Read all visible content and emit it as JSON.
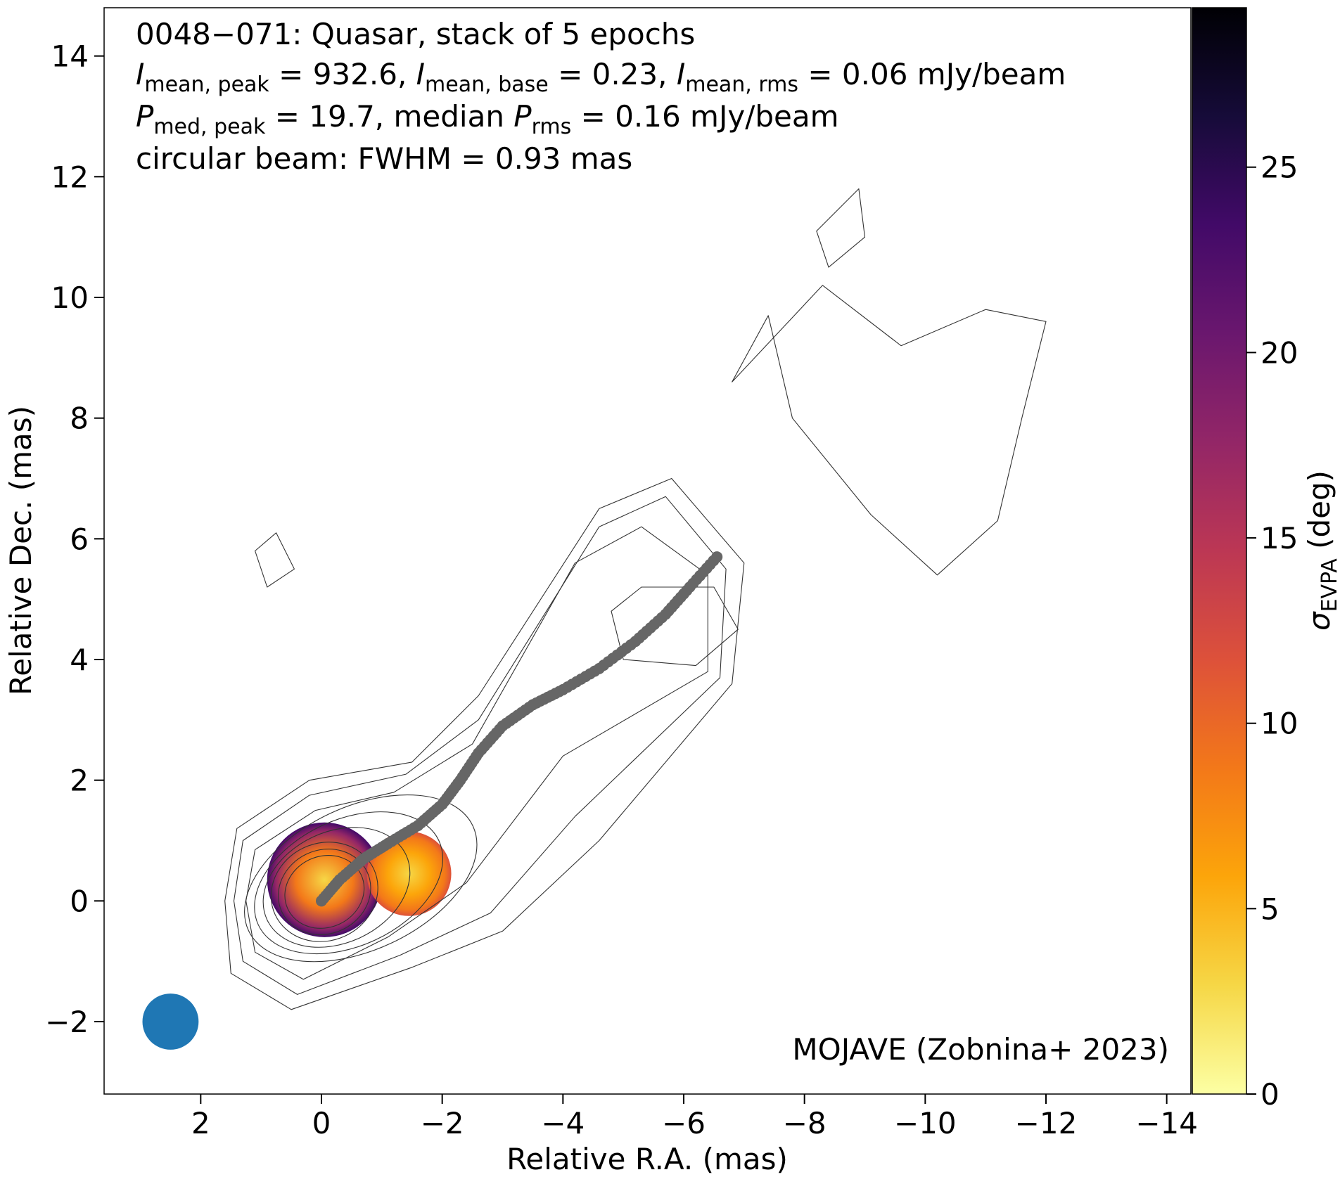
{
  "chart_data": {
    "type": "heatmap",
    "source_header": "0048−071: Quasar, stack of 5 epochs",
    "annotation_lines": [
      {
        "segments": [
          {
            "t": "I",
            "style": "italic"
          },
          {
            "t": "mean, peak",
            "style": "sub"
          },
          {
            "t": " = 932.6, "
          },
          {
            "t": "I",
            "style": "italic"
          },
          {
            "t": "mean, base",
            "style": "sub"
          },
          {
            "t": " = 0.23, "
          },
          {
            "t": "I",
            "style": "italic"
          },
          {
            "t": "mean, rms",
            "style": "sub"
          },
          {
            "t": " = 0.06 mJy/beam"
          }
        ]
      },
      {
        "segments": [
          {
            "t": "P",
            "style": "italic"
          },
          {
            "t": "med, peak",
            "style": "sub"
          },
          {
            "t": " = 19.7, median "
          },
          {
            "t": "P",
            "style": "italic"
          },
          {
            "t": "rms",
            "style": "sub"
          },
          {
            "t": " = 0.16 mJy/beam"
          }
        ]
      },
      {
        "segments": [
          {
            "t": "circular beam: FWHM = 0.93 mas"
          }
        ]
      }
    ],
    "credit": "MOJAVE (Zobnina+ 2023)",
    "xlabel": "Relative R.A. (mas)",
    "ylabel": "Relative Dec. (mas)",
    "xlim": [
      3.6,
      -14.4
    ],
    "ylim": [
      -3.2,
      14.8
    ],
    "xticks": [
      2,
      0,
      -2,
      -4,
      -6,
      -8,
      -10,
      -12,
      -14
    ],
    "xtick_labels": [
      "2",
      "0",
      "−2",
      "−4",
      "−6",
      "−8",
      "−10",
      "−12",
      "−14"
    ],
    "yticks": [
      -2,
      0,
      2,
      4,
      6,
      8,
      10,
      12,
      14
    ],
    "ytick_labels": [
      "−2",
      "0",
      "2",
      "4",
      "6",
      "8",
      "10",
      "12",
      "14"
    ],
    "colorbar": {
      "label_main": "σ",
      "label_sub": "EVPA",
      "label_tail": " (deg)",
      "range": [
        0,
        29.3
      ],
      "ticks": [
        0,
        5,
        10,
        15,
        20,
        25
      ],
      "tick_labels": [
        "0",
        "5",
        "10",
        "15",
        "20",
        "25"
      ],
      "cmap": "inferno_r",
      "stops": [
        "#fcffa4",
        "#f6d746",
        "#fca50a",
        "#f37819",
        "#dd513a",
        "#bc3754",
        "#932667",
        "#6a176e",
        "#420a68",
        "#160b39",
        "#000004"
      ]
    },
    "beam": {
      "x": 2.5,
      "y": -2.0,
      "fwhm": 0.93,
      "color": "#1f77b4"
    },
    "ridgeline": {
      "color": "#666666",
      "points": [
        [
          0.0,
          0.0
        ],
        [
          -0.3,
          0.35
        ],
        [
          -0.7,
          0.7
        ],
        [
          -1.1,
          0.95
        ],
        [
          -1.6,
          1.25
        ],
        [
          -2.0,
          1.6
        ],
        [
          -2.3,
          2.0
        ],
        [
          -2.6,
          2.45
        ],
        [
          -3.0,
          2.9
        ],
        [
          -3.5,
          3.25
        ],
        [
          -4.0,
          3.5
        ],
        [
          -4.6,
          3.85
        ],
        [
          -5.2,
          4.3
        ],
        [
          -5.7,
          4.75
        ],
        [
          -6.1,
          5.2
        ],
        [
          -6.55,
          5.7
        ]
      ]
    },
    "evpa_uncertainty_blobs": [
      {
        "x": -0.05,
        "y": 0.35,
        "r": 0.95,
        "center_value": 4,
        "edge_value": 24
      },
      {
        "x": -1.45,
        "y": 0.45,
        "r": 0.7,
        "center_value": 3,
        "edge_value": 12
      }
    ],
    "stokes_i_contours": "black, closed curves"
  }
}
